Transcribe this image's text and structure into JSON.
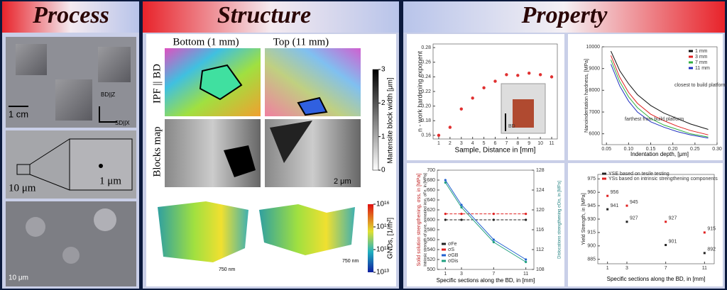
{
  "process": {
    "title": "Process",
    "scale_1": "1 cm",
    "axis_bd": "BD||Z",
    "axis_sd": "SD||X",
    "scale_2": "10 μm",
    "scale_3": "1 μm",
    "scale_4": "10 μm"
  },
  "structure": {
    "title": "Structure",
    "col_bottom": "Bottom (1 mm)",
    "col_top": "Top (11 mm)",
    "row_ipf": "IPF || BD",
    "row_blocks": "Blocks map",
    "scale_1": "2 μm",
    "scale_2": "750 nm",
    "scale_3": "750 nm",
    "colorbar_1": {
      "label": "Martensite block width [μm]",
      "lim": [
        0,
        3
      ],
      "ticks": [
        0,
        1,
        2,
        3
      ]
    },
    "colorbar_2": {
      "label": "GNDs, [1/m²]",
      "lim": [
        13,
        16
      ],
      "ticks": [
        {
          "value": 13,
          "label": "10¹³"
        },
        {
          "value": 14,
          "label": "10¹⁴"
        },
        {
          "value": 15,
          "label": "10¹⁵"
        },
        {
          "value": 16,
          "label": "10¹⁶"
        }
      ]
    }
  },
  "property": {
    "title": "Property"
  },
  "chart_data": [
    {
      "type": "scatter",
      "xlabel": "Sample, Distance in [mm]",
      "ylabel": "n - work hardening exponent",
      "annotations": [
        "BD"
      ],
      "x": [
        1,
        2,
        3,
        4,
        5,
        6,
        7,
        8,
        9,
        10,
        11
      ],
      "xlim": [
        0.5,
        11.5
      ],
      "xticks": [
        1,
        2,
        3,
        4,
        5,
        6,
        7,
        8,
        9,
        10,
        11
      ],
      "ylim": [
        0.155,
        0.285
      ],
      "yticks": [
        0.16,
        0.18,
        {
          "value": 0.2,
          "label": "0.20"
        },
        0.22,
        0.24,
        0.26,
        0.28
      ],
      "series": [
        {
          "name": null,
          "color": "#e03030",
          "values": [
            0.16,
            0.171,
            0.196,
            0.211,
            0.225,
            0.234,
            0.243,
            0.242,
            0.245,
            0.243,
            0.24
          ]
        }
      ]
    },
    {
      "type": "line",
      "xlabel": "Indentation depth, [μm]",
      "ylabel": "Nanoindentation hardness, [MPa]",
      "legend": "upper right",
      "annotations": [
        "closest to build platform",
        "farthest from build platform"
      ],
      "x": [
        0.06,
        0.08,
        0.1,
        0.12,
        0.15,
        0.18,
        0.21,
        0.24,
        0.28
      ],
      "xlim": [
        0.04,
        0.3
      ],
      "xticks": [
        0.05,
        {
          "value": 0.1,
          "label": "0.10"
        },
        0.15,
        {
          "value": 0.2,
          "label": "0.20"
        },
        0.25,
        {
          "value": 0.3,
          "label": "0.30"
        }
      ],
      "ylim": [
        5500,
        10000
      ],
      "yticks": [
        6000,
        7000,
        8000,
        9000,
        10000
      ],
      "series": [
        {
          "name": "1 mm",
          "color": "#111111",
          "values": [
            9800,
            8900,
            8300,
            7800,
            7300,
            6950,
            6700,
            6450,
            6200
          ]
        },
        {
          "name": "3 mm",
          "color": "#e02020",
          "values": [
            9600,
            8600,
            7900,
            7400,
            6900,
            6600,
            6350,
            6150,
            5950
          ]
        },
        {
          "name": "7 mm",
          "color": "#30b040",
          "values": [
            9400,
            8400,
            7700,
            7200,
            6700,
            6400,
            6200,
            6000,
            5850
          ]
        },
        {
          "name": "11 mm",
          "color": "#2030c0",
          "values": [
            9200,
            8200,
            7500,
            7000,
            6550,
            6300,
            6100,
            5950,
            5800
          ]
        }
      ]
    },
    {
      "type": "line",
      "xlabel": "Specific sections along the BD, in [mm]",
      "ylabel": "Solid solution strengthening, σss, in [MPa]",
      "ylabel_2": "Intrinsic strength of pure, annealed iron, σFe, in [MPa]",
      "y2label": "Dislocations strengthening σDis, in [MPa]",
      "legend": "lower left",
      "x": [
        1,
        3,
        7,
        11
      ],
      "xlim": [
        0,
        12
      ],
      "xticks": [
        1,
        3,
        7,
        11
      ],
      "ylim": [
        500,
        700
      ],
      "yticks": [
        500,
        520,
        540,
        560,
        580,
        600,
        620,
        640,
        660,
        680,
        700
      ],
      "y2lim": [
        108,
        128
      ],
      "y2ticks": [
        108,
        112,
        116,
        120,
        124,
        128
      ],
      "series": [
        {
          "name": "σFe",
          "color": "#222222",
          "dash": true,
          "values": [
            600,
            600,
            600,
            600
          ]
        },
        {
          "name": "σS",
          "color": "#e02020",
          "dash": true,
          "values": [
            612,
            612,
            612,
            612
          ]
        },
        {
          "name": "σGB",
          "color": "#2060d0",
          "axis": "y2",
          "values": [
            126,
            121,
            114,
            110
          ]
        },
        {
          "name": "σDis",
          "color": "#20a080",
          "axis": "y2",
          "values": [
            125.5,
            120.5,
            113.5,
            109.5
          ]
        }
      ]
    },
    {
      "type": "scatter",
      "xlabel": "Specific sections along the BD, in [mm]",
      "ylabel": "Yield Strength, in [MPa]",
      "legend": "upper center",
      "show_values": true,
      "x": [
        1,
        3,
        7,
        11
      ],
      "xlim": [
        0,
        12
      ],
      "xticks": [
        1,
        3,
        7,
        11
      ],
      "ylim": [
        880,
        980
      ],
      "yticks": [
        885,
        900,
        915,
        930,
        945,
        960,
        975
      ],
      "series": [
        {
          "name": "YSE based on tesile testing",
          "color": "#222222",
          "values": [
            941,
            927,
            901,
            892
          ]
        },
        {
          "name": "YSs based on intrinsic strengthening components",
          "color": "#e02020",
          "values": [
            956,
            945,
            927,
            915
          ]
        }
      ]
    }
  ]
}
